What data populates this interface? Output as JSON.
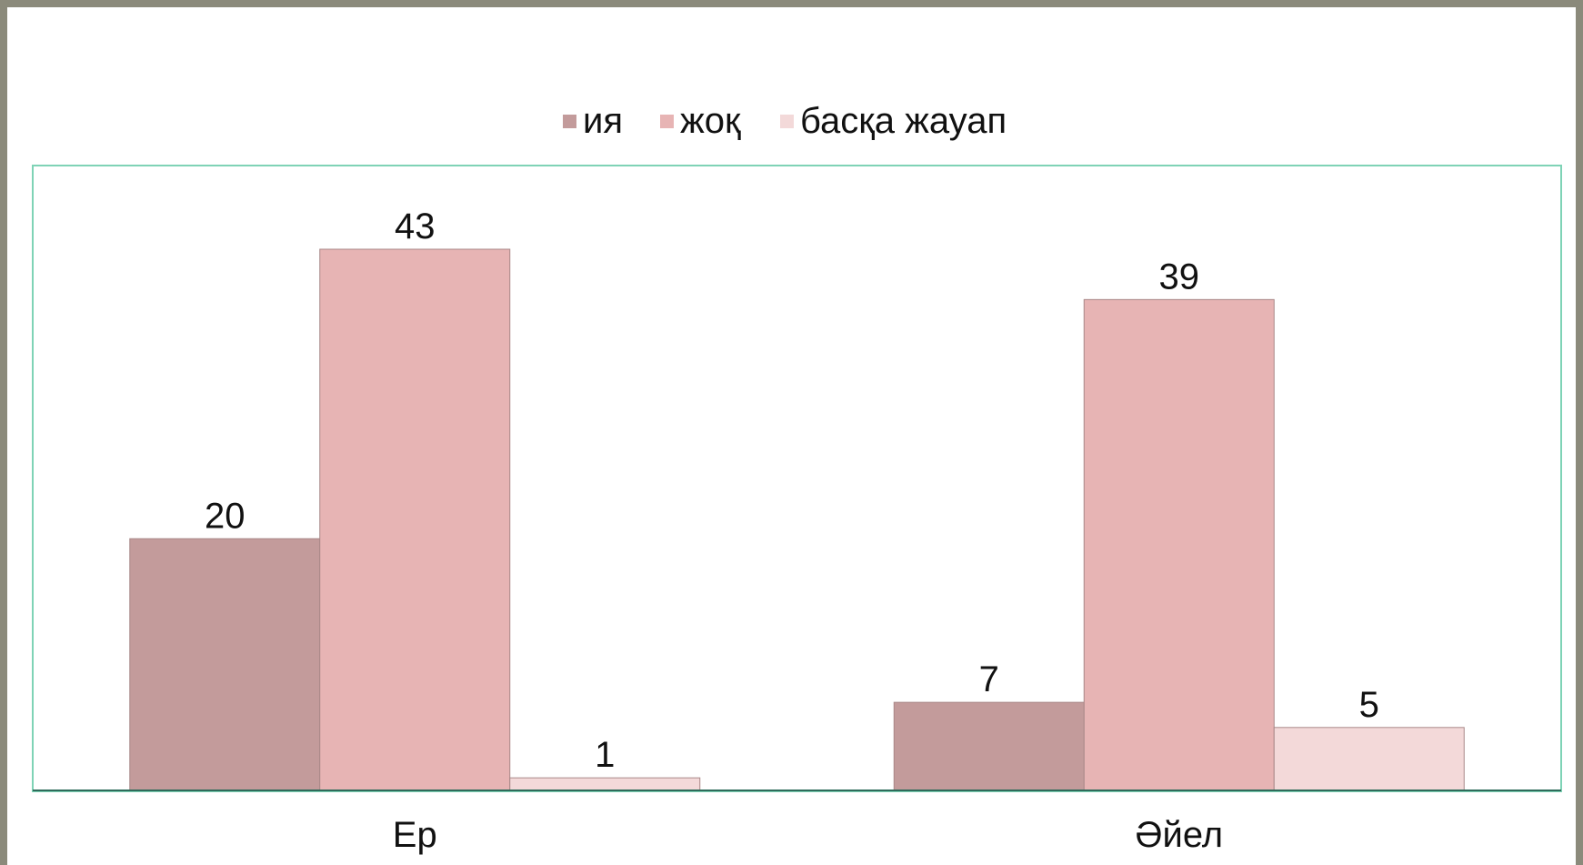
{
  "chart_data": {
    "type": "bar",
    "categories": [
      "Ер",
      "Әйел"
    ],
    "series": [
      {
        "name": "ия",
        "values": [
          20,
          7
        ],
        "color": "#c39b9b"
      },
      {
        "name": "жоқ",
        "values": [
          43,
          39
        ],
        "color": "#e7b4b4"
      },
      {
        "name": "басқа жауап",
        "values": [
          1,
          5
        ],
        "color": "#f3d9d9"
      }
    ],
    "ylim": [
      0,
      50
    ],
    "legend": "top-center",
    "grid": false,
    "plot_border_color": "#7fd3b6"
  }
}
